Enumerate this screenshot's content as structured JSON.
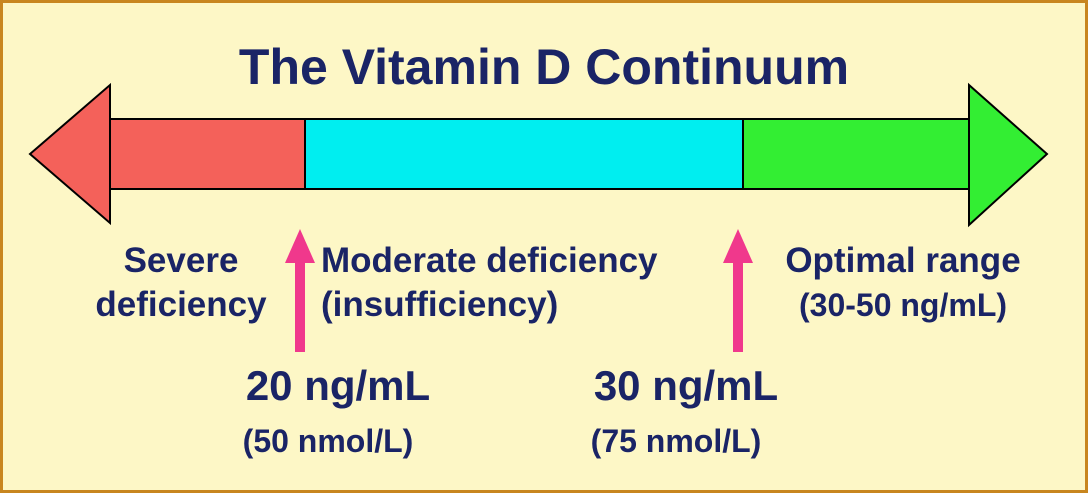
{
  "title": "The Vitamin D Continuum",
  "colors": {
    "background": "#fdf7c6",
    "border": "#c8861f",
    "text": "#1a2466",
    "severe": "#f4615a",
    "moderate": "#00eef0",
    "optimal": "#33ee33",
    "marker": "#f0388c"
  },
  "ranges": {
    "severe": {
      "line1": "Severe",
      "line2": "deficiency"
    },
    "moderate": {
      "line1": "Moderate deficiency",
      "line2": "(insufficiency)"
    },
    "optimal": {
      "line1": "Optimal range",
      "line2": "(30-50 ng/mL)"
    }
  },
  "cutoffs": [
    {
      "value": "20 ng/mL",
      "alt": "(50 nmol/L)"
    },
    {
      "value": "30 ng/mL",
      "alt": "(75 nmol/L)"
    }
  ],
  "icons": {
    "left_arrowhead": "left-arrowhead-icon",
    "right_arrowhead": "right-arrowhead-icon",
    "marker_arrow": "up-arrow-icon"
  }
}
